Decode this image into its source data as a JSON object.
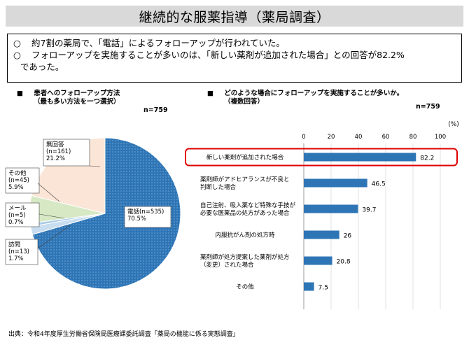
{
  "title": "継続的な服薬指導（薬局調査）",
  "summary": {
    "bullet": "○",
    "lines": [
      "約7割の薬局で、「電話」によるフォローアップが行われていた。",
      "フォローアップを実施することが多いのは、「新しい薬剤が追加された場合」との回答が82.2%",
      "であった。"
    ]
  },
  "left_section": {
    "marker": "■",
    "title_line1": "患者へのフォローアップ方法",
    "title_line2": "（最も多い方法を一つ選択）",
    "n": "n=759"
  },
  "right_section": {
    "marker": "■",
    "title_line1": "どのような場合にフォローアップを実施することが多いか。",
    "title_line2": "（複数回答）",
    "n": "n=759",
    "unit": "(%)"
  },
  "colors": {
    "blue": "#2e75b6",
    "highlight": "#e00000",
    "pie_other": "#d6e8c4",
    "pie_none": "#fbe5d6",
    "pie_mail": "#a8cbe8",
    "pie_visit": "#c9ddf0"
  },
  "chart_data": [
    {
      "type": "pie",
      "title": "患者へのフォローアップ方法",
      "slices": [
        {
          "name": "電話",
          "count": "(n=535)",
          "value": 70.5,
          "pct": "70.5%"
        },
        {
          "name": "訪問",
          "count": "(n=13)",
          "value": 1.7,
          "pct": "1.7%"
        },
        {
          "name": "メール",
          "count": "(n=5)",
          "value": 0.7,
          "pct": "0.7%"
        },
        {
          "name": "その他",
          "count": "(n=45)",
          "value": 5.9,
          "pct": "5.9%"
        },
        {
          "name": "無回答",
          "count": "(n=161)",
          "value": 21.2,
          "pct": "21.2%"
        }
      ]
    },
    {
      "type": "bar",
      "orientation": "horizontal",
      "title": "どのような場合にフォローアップを実施することが多いか。",
      "xlim": [
        0,
        100
      ],
      "xticks": [
        "0",
        "20",
        "40",
        "60",
        "80",
        "100"
      ],
      "grid": true,
      "categories": [
        [
          "新しい薬剤が追加された場合"
        ],
        [
          "薬剤師がアドヒアランスが不良と",
          "判断した場合"
        ],
        [
          "自己注射、吸入薬など特殊な手技が",
          "必要な医薬品の処方があった場合"
        ],
        [
          "内服抗がん剤の処方時"
        ],
        [
          "薬剤師が処方提案した薬剤が処方",
          "（変更）された場合"
        ],
        [
          "その他"
        ]
      ],
      "values": [
        82.2,
        46.5,
        39.7,
        26,
        20.8,
        7.5
      ],
      "value_labels": [
        "82.2",
        "46.5",
        "39.7",
        "26",
        "20.8",
        "7.5"
      ],
      "highlighted_category": "新しい薬剤が追加された場合"
    }
  ],
  "source": "出典：令和4年度厚生労働省保険局医療課委託調査「薬局の機能に係る実態調査」"
}
